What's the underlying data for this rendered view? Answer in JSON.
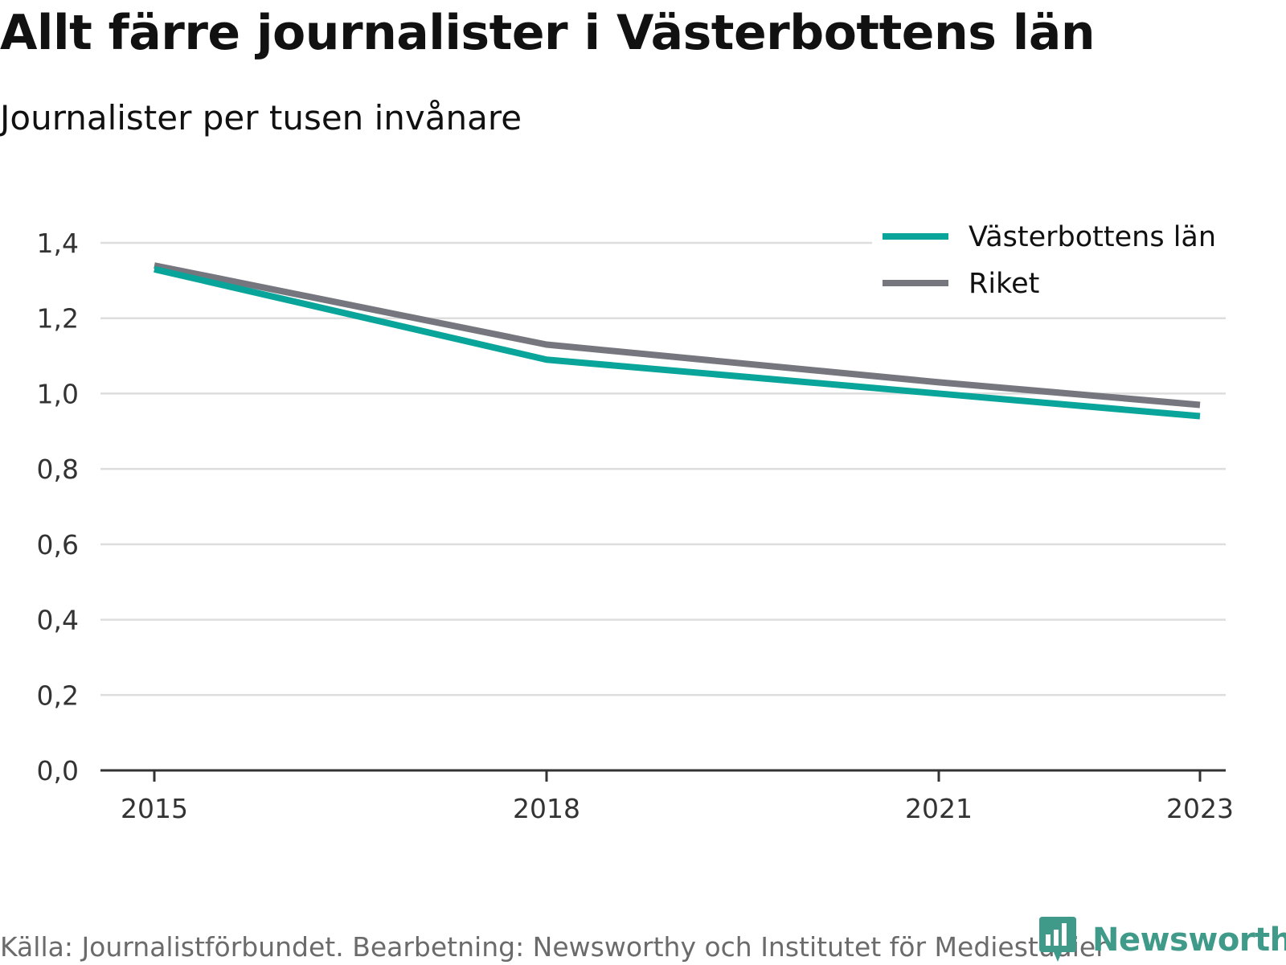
{
  "title": "Allt färre journalister i Västerbottens län",
  "subtitle": "Journalister per tusen invånare",
  "source": "Källa: Journalistförbundet. Bearbetning: Newsworthy och Institutet för Mediestudier",
  "brand": {
    "name": "Newsworthy",
    "icon": "newsworthy-logo-icon",
    "color": "#3f9a8a"
  },
  "chart_data": {
    "type": "line",
    "x": [
      2015,
      2018,
      2021,
      2023
    ],
    "x_tick_labels": [
      "2015",
      "2018",
      "2021",
      "2023"
    ],
    "ylim": [
      0,
      1.4
    ],
    "y_ticks": [
      0,
      0.2,
      0.4,
      0.6,
      0.8,
      1.0,
      1.2,
      1.4
    ],
    "y_tick_labels": [
      "0,0",
      "0,2",
      "0,4",
      "0,6",
      "0,8",
      "1,0",
      "1,2",
      "1,4"
    ],
    "grid": true,
    "legend_position": "top-right",
    "series": [
      {
        "name": "Västerbottens län",
        "color": "#0aa59a",
        "values": [
          1.33,
          1.09,
          1.0,
          0.94
        ]
      },
      {
        "name": "Riket",
        "color": "#76767e",
        "values": [
          1.34,
          1.13,
          1.03,
          0.97
        ]
      }
    ]
  }
}
